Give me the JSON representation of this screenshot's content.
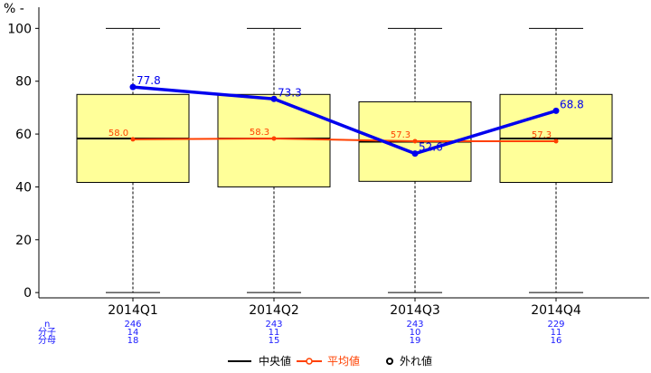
{
  "chart_data": {
    "type": "box",
    "unit_label": "% -",
    "ylim": [
      -2,
      108
    ],
    "yticks": [
      0,
      20,
      40,
      60,
      80,
      100
    ],
    "categories": [
      "2014Q1",
      "2014Q2",
      "2014Q3",
      "2014Q4"
    ],
    "boxes": [
      {
        "whisker_low": 0,
        "q1": 41.7,
        "median": 58.3,
        "q3": 75.0,
        "whisker_high": 100
      },
      {
        "whisker_low": 0,
        "q1": 40.0,
        "median": 58.3,
        "q3": 75.0,
        "whisker_high": 100
      },
      {
        "whisker_low": 0,
        "q1": 42.1,
        "median": 57.1,
        "q3": 72.2,
        "whisker_high": 100
      },
      {
        "whisker_low": 0,
        "q1": 41.7,
        "median": 58.3,
        "q3": 75.0,
        "whisker_high": 100
      }
    ],
    "mean_series": {
      "name": "平均値",
      "values": [
        58.0,
        58.3,
        57.3,
        57.3
      ],
      "labels": [
        "58.0",
        "58.3",
        "57.3",
        "57.3"
      ],
      "color": "#ff4000"
    },
    "blue_series": {
      "values": [
        77.8,
        73.3,
        52.6,
        68.8
      ],
      "labels": [
        "77.8",
        "73.3",
        "52.6",
        "68.8"
      ],
      "color": "#0000ee"
    },
    "stats_rows": [
      {
        "label": "n",
        "values": [
          "246",
          "243",
          "243",
          "229"
        ]
      },
      {
        "label": "分子",
        "values": [
          "14",
          "11",
          "10",
          "11"
        ]
      },
      {
        "label": "分母",
        "values": [
          "18",
          "15",
          "19",
          "16"
        ]
      }
    ],
    "legend": [
      {
        "name": "中央値",
        "color": "#000000"
      },
      {
        "name": "平均値",
        "color": "#ff4000"
      },
      {
        "name": "外れ値",
        "color": "#000000"
      }
    ],
    "box_fill": "#ffff99"
  }
}
